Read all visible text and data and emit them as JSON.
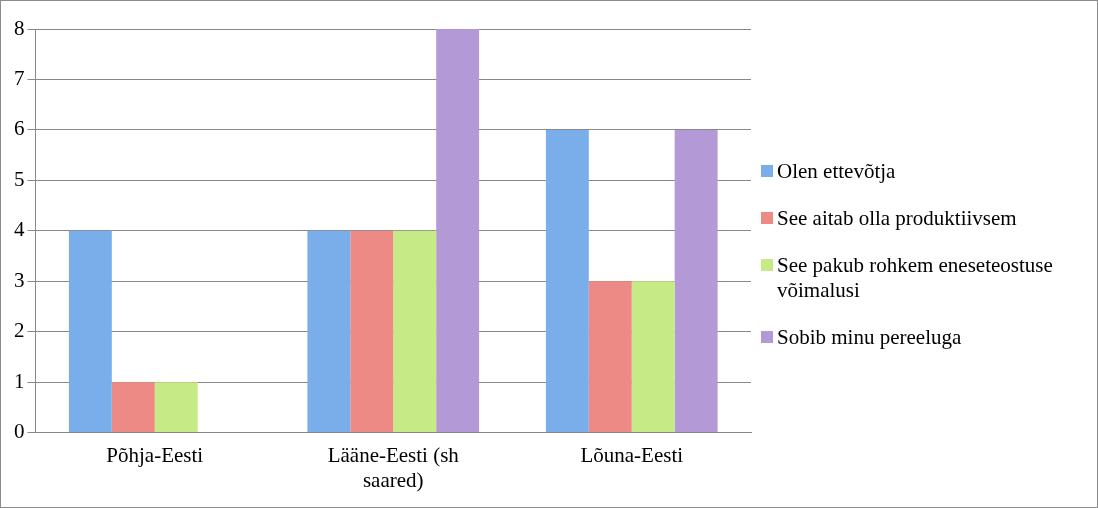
{
  "chart_data": {
    "type": "bar",
    "categories": [
      "Põhja-Eesti",
      "Lääne-Eesti (sh saared)",
      "Lõuna-Eesti"
    ],
    "series": [
      {
        "name": "Olen ettevõtja",
        "color": "#7aaeea",
        "values": [
          4,
          4,
          6
        ]
      },
      {
        "name": "See aitab olla produktiivsem",
        "color": "#ee8a86",
        "values": [
          1,
          4,
          3
        ]
      },
      {
        "name": "See pakub rohkem eneseteostuse võimalusi",
        "color": "#c6ea86",
        "values": [
          1,
          4,
          3
        ]
      },
      {
        "name": "Sobib minu pereeluga",
        "color": "#b39ad6",
        "values": [
          0,
          8,
          6
        ]
      }
    ],
    "ylim": [
      0,
      8
    ],
    "yticks": [
      0,
      1,
      2,
      3,
      4,
      5,
      6,
      7,
      8
    ],
    "grid": "y",
    "legend": "right"
  }
}
